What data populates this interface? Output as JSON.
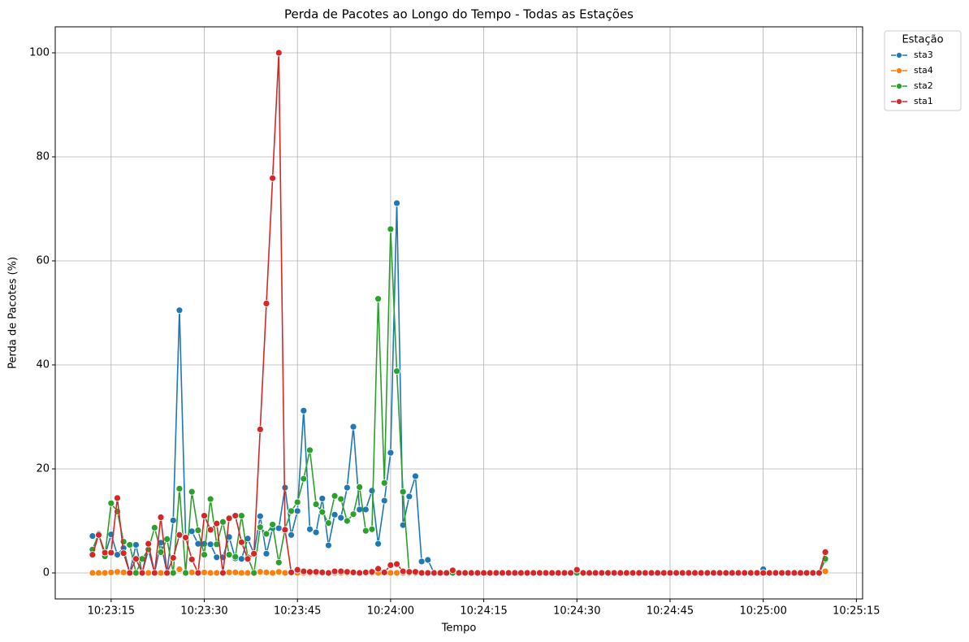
{
  "chart_data": {
    "type": "line",
    "title": "Perda de Pacotes ao Longo do Tempo - Todas as Estações",
    "x_label": "Tempo",
    "y_label": "Perda de Pacotes (%)",
    "legend_title": "Estação",
    "legend": "upper right outside",
    "grid": true,
    "x": [
      "10:23:12",
      "10:23:13",
      "10:23:14",
      "10:23:15",
      "10:23:16",
      "10:23:17",
      "10:23:18",
      "10:23:19",
      "10:23:20",
      "10:23:21",
      "10:23:22",
      "10:23:23",
      "10:23:24",
      "10:23:25",
      "10:23:26",
      "10:23:27",
      "10:23:28",
      "10:23:29",
      "10:23:30",
      "10:23:31",
      "10:23:32",
      "10:23:33",
      "10:23:34",
      "10:23:35",
      "10:23:36",
      "10:23:37",
      "10:23:38",
      "10:23:39",
      "10:23:40",
      "10:23:41",
      "10:23:42",
      "10:23:43",
      "10:23:44",
      "10:23:45",
      "10:23:46",
      "10:23:47",
      "10:23:48",
      "10:23:49",
      "10:23:50",
      "10:23:51",
      "10:23:52",
      "10:23:53",
      "10:23:54",
      "10:23:55",
      "10:23:56",
      "10:23:57",
      "10:23:58",
      "10:23:59",
      "10:24:00",
      "10:24:01",
      "10:24:02",
      "10:24:03",
      "10:24:04",
      "10:24:05",
      "10:24:06",
      "10:24:07",
      "10:24:08",
      "10:24:09",
      "10:24:10",
      "10:24:11",
      "10:24:12",
      "10:24:13",
      "10:24:14",
      "10:24:15",
      "10:24:16",
      "10:24:17",
      "10:24:18",
      "10:24:19",
      "10:24:20",
      "10:24:21",
      "10:24:22",
      "10:24:23",
      "10:24:24",
      "10:24:25",
      "10:24:26",
      "10:24:27",
      "10:24:28",
      "10:24:29",
      "10:24:30",
      "10:24:31",
      "10:24:32",
      "10:24:33",
      "10:24:34",
      "10:24:35",
      "10:24:36",
      "10:24:37",
      "10:24:38",
      "10:24:39",
      "10:24:40",
      "10:24:41",
      "10:24:42",
      "10:24:43",
      "10:24:44",
      "10:24:45",
      "10:24:46",
      "10:24:47",
      "10:24:48",
      "10:24:49",
      "10:24:50",
      "10:24:51",
      "10:24:52",
      "10:24:53",
      "10:24:54",
      "10:24:55",
      "10:24:56",
      "10:24:57",
      "10:24:58",
      "10:24:59",
      "10:25:00",
      "10:25:01",
      "10:25:02",
      "10:25:03",
      "10:25:04",
      "10:25:05",
      "10:25:06",
      "10:25:07",
      "10:25:08",
      "10:25:09",
      "10:25:10"
    ],
    "series": [
      {
        "name": "sta3",
        "color": "#1f77b4",
        "values": [
          7.1,
          7.5,
          3.4,
          7.4,
          3.5,
          4.8,
          0,
          5.4,
          0,
          4.4,
          0,
          5.8,
          0,
          10.1,
          50.5,
          6.9,
          8.0,
          5.6,
          5.6,
          5.5,
          3.0,
          3.0,
          6.9,
          2.8,
          2.7,
          6.6,
          3.7,
          10.9,
          3.7,
          8.6,
          8.6,
          16.4,
          7.3,
          11.9,
          31.2,
          8.4,
          7.8,
          14.3,
          5.3,
          11.2,
          10.6,
          16.4,
          28.1,
          12.2,
          12.2,
          15.8,
          5.6,
          13.9,
          23.1,
          71.1,
          9.2,
          14.7,
          18.6,
          2.2,
          2.5,
          0,
          0,
          0,
          0,
          0,
          0,
          0,
          0,
          0,
          0,
          0,
          0,
          0,
          0,
          0,
          0,
          0,
          0,
          0,
          0,
          0,
          0,
          0,
          0,
          0,
          0,
          0,
          0,
          0,
          0,
          0,
          0,
          0,
          0,
          0,
          0,
          0,
          0,
          0,
          0,
          0,
          0,
          0,
          0,
          0,
          0,
          0,
          0,
          0,
          0,
          0,
          0,
          0,
          0.7,
          0,
          0,
          0,
          0,
          0,
          0,
          0,
          0,
          0,
          2.5
        ]
      },
      {
        "name": "sta4",
        "color": "#ff7f0e",
        "values": [
          0,
          0,
          0,
          0.1,
          0.2,
          0.1,
          0,
          0,
          0,
          0,
          0,
          0,
          0,
          0.1,
          0.7,
          0,
          0.1,
          0.1,
          0.1,
          0,
          0,
          0,
          0.1,
          0.1,
          0,
          0,
          0.1,
          0.2,
          0.1,
          0,
          0.2,
          0,
          0,
          0,
          0,
          0,
          0,
          0,
          0,
          0,
          0,
          0,
          0,
          0,
          0,
          0,
          0,
          0,
          0,
          0,
          0,
          0,
          0,
          0,
          0,
          0,
          0,
          0,
          0,
          0,
          0,
          0,
          0,
          0,
          0,
          0,
          0,
          0,
          0,
          0,
          0,
          0,
          0,
          0,
          0,
          0,
          0,
          0,
          0,
          0,
          0,
          0,
          0,
          0,
          0,
          0,
          0,
          0,
          0,
          0,
          0,
          0,
          0,
          0,
          0,
          0,
          0,
          0,
          0,
          0,
          0,
          0,
          0,
          0,
          0,
          0,
          0,
          0,
          0,
          0,
          0,
          0,
          0,
          0,
          0,
          0,
          0,
          0,
          0.3
        ]
      },
      {
        "name": "sta2",
        "color": "#2ca02c",
        "values": [
          4.5,
          7.5,
          3.2,
          13.4,
          11.8,
          6.0,
          5.4,
          0,
          2.7,
          4.5,
          8.7,
          4.0,
          6.5,
          0,
          16.2,
          0,
          15.6,
          8.2,
          3.5,
          14.2,
          5.5,
          9.8,
          3.5,
          3.1,
          11.0,
          3.0,
          0,
          8.8,
          7.5,
          9.3,
          2.0,
          8.4,
          11.9,
          13.6,
          18.1,
          23.6,
          13.2,
          11.7,
          9.6,
          14.8,
          14.2,
          10.0,
          11.3,
          16.5,
          8.1,
          8.4,
          52.7,
          17.3,
          66.1,
          38.8,
          15.6,
          0,
          0,
          0,
          0,
          0,
          0,
          0,
          0,
          0,
          0,
          0,
          0,
          0,
          0,
          0,
          0,
          0,
          0,
          0,
          0,
          0,
          0,
          0,
          0,
          0,
          0,
          0,
          0,
          0,
          0,
          0,
          0,
          0,
          0,
          0,
          0,
          0,
          0,
          0,
          0,
          0,
          0,
          0,
          0,
          0,
          0,
          0,
          0,
          0,
          0,
          0,
          0,
          0,
          0,
          0,
          0,
          0,
          0,
          0,
          0,
          0,
          0,
          0,
          0,
          0,
          0,
          0,
          2.7
        ]
      },
      {
        "name": "sta1",
        "color": "#d62728",
        "values": [
          3.5,
          7.3,
          3.9,
          3.9,
          14.4,
          3.8,
          0,
          2.7,
          0,
          5.6,
          0,
          10.7,
          0,
          2.9,
          7.3,
          6.8,
          2.6,
          0,
          11.0,
          8.3,
          9.5,
          0,
          10.5,
          11.0,
          5.9,
          2.7,
          3.7,
          27.6,
          51.8,
          75.9,
          100,
          8.3,
          0.1,
          0.6,
          0.3,
          0.2,
          0.2,
          0.1,
          0,
          0.3,
          0.3,
          0.2,
          0.1,
          0,
          0.1,
          0.2,
          0.8,
          0.1,
          1.5,
          1.7,
          0.3,
          0.2,
          0.2,
          0,
          0,
          0,
          0,
          0,
          0.5,
          0,
          0,
          0,
          0,
          0,
          0,
          0,
          0,
          0,
          0,
          0,
          0,
          0,
          0,
          0,
          0,
          0,
          0,
          0,
          0.6,
          0,
          0,
          0,
          0,
          0,
          0,
          0,
          0,
          0,
          0,
          0,
          0,
          0,
          0,
          0,
          0,
          0,
          0,
          0,
          0,
          0,
          0,
          0,
          0,
          0,
          0,
          0,
          0,
          0,
          0,
          0,
          0,
          0,
          0,
          0,
          0,
          0,
          0,
          0,
          4.0
        ]
      }
    ],
    "xlim": [
      "10:23:06",
      "10:25:16"
    ],
    "xticks": [
      "10:23:15",
      "10:23:30",
      "10:23:45",
      "10:24:00",
      "10:24:15",
      "10:24:30",
      "10:24:45",
      "10:25:00",
      "10:25:15"
    ],
    "ylim": [
      -5,
      105
    ],
    "yticks": [
      0,
      20,
      40,
      60,
      80,
      100
    ]
  }
}
